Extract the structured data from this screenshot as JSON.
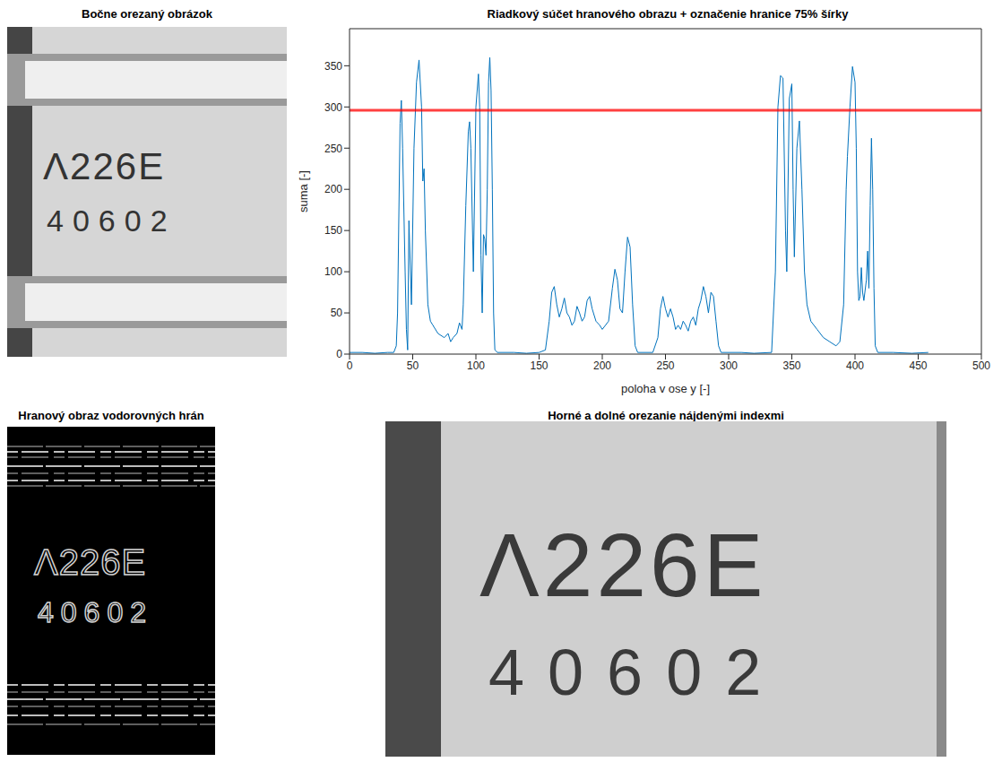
{
  "chart_data": {
    "type": "line",
    "title": "Riadkový súčet hranového obrazu + označenie hranice 75% šírky",
    "xlabel": "poloha v ose y [-]",
    "ylabel": "suma [-]",
    "x": [
      0,
      10,
      20,
      30,
      35,
      37,
      38,
      40,
      41,
      42,
      44,
      45,
      46,
      47,
      49,
      51,
      53,
      55,
      57,
      58,
      59,
      60,
      62,
      64,
      66,
      70,
      75,
      78,
      80,
      82,
      85,
      87,
      89,
      90,
      92,
      94,
      95,
      96,
      98,
      100,
      102,
      103,
      104,
      105,
      106,
      107,
      108,
      109,
      110,
      111,
      112,
      113,
      114,
      115,
      117,
      130,
      140,
      150,
      155,
      158,
      160,
      162,
      164,
      166,
      168,
      170,
      172,
      174,
      176,
      178,
      180,
      182,
      184,
      186,
      188,
      190,
      192,
      195,
      198,
      200,
      205,
      208,
      210,
      212,
      214,
      216,
      218,
      220,
      222,
      224,
      226,
      228,
      240,
      244,
      246,
      248,
      250,
      252,
      254,
      256,
      258,
      260,
      262,
      264,
      266,
      268,
      270,
      272,
      274,
      276,
      278,
      280,
      282,
      284,
      286,
      288,
      290,
      292,
      294,
      310,
      320,
      334,
      337,
      339,
      341,
      343,
      345,
      346,
      348,
      350,
      351,
      352,
      354,
      356,
      358,
      360,
      362,
      365,
      370,
      375,
      380,
      385,
      388,
      391,
      393,
      394,
      396,
      398,
      400,
      401,
      402,
      403,
      404,
      405,
      406,
      407,
      409,
      410,
      411,
      412,
      413,
      414,
      415,
      416,
      418,
      430,
      445,
      458
    ],
    "values": [
      2,
      2,
      1,
      2,
      2,
      10,
      50,
      280,
      308,
      250,
      100,
      30,
      5,
      162,
      60,
      250,
      330,
      357,
      300,
      210,
      225,
      150,
      60,
      40,
      35,
      25,
      20,
      25,
      15,
      20,
      25,
      38,
      30,
      60,
      180,
      270,
      282,
      250,
      100,
      300,
      340,
      300,
      120,
      50,
      145,
      140,
      120,
      200,
      330,
      360,
      320,
      200,
      50,
      5,
      2,
      2,
      1,
      2,
      5,
      40,
      75,
      82,
      60,
      45,
      55,
      68,
      50,
      45,
      35,
      40,
      58,
      50,
      40,
      45,
      65,
      70,
      55,
      40,
      35,
      30,
      40,
      80,
      103,
      90,
      55,
      50,
      100,
      142,
      130,
      60,
      10,
      2,
      2,
      20,
      55,
      70,
      55,
      45,
      55,
      45,
      30,
      35,
      30,
      40,
      35,
      28,
      40,
      45,
      35,
      55,
      65,
      82,
      70,
      50,
      75,
      70,
      40,
      10,
      2,
      2,
      1,
      2,
      100,
      300,
      338,
      335,
      150,
      100,
      310,
      328,
      200,
      118,
      250,
      283,
      200,
      100,
      60,
      40,
      30,
      20,
      15,
      10,
      15,
      60,
      200,
      240,
      300,
      349,
      330,
      250,
      100,
      65,
      70,
      105,
      75,
      65,
      90,
      125,
      80,
      180,
      262,
      200,
      80,
      10,
      2,
      2,
      1,
      2
    ],
    "color": "#0072bd",
    "xlim": [
      0,
      500
    ],
    "xticks": [
      0,
      50,
      100,
      150,
      200,
      250,
      300,
      350,
      400,
      450,
      500
    ],
    "ylim": [
      0,
      395
    ],
    "yticks": [
      0,
      50,
      100,
      150,
      200,
      250,
      300,
      350
    ],
    "grid": false,
    "reference_line": {
      "value": 296,
      "color": "#ff0000"
    }
  },
  "images": [
    {
      "title": "Bočne orezaný obrázok",
      "texts": [
        "Λ226E",
        "40602"
      ]
    },
    {
      "title": "Hranový obraz vodorovných hrán",
      "texts": [
        "Λ226E",
        "40602"
      ]
    },
    {
      "title": "Horné a dolné orezanie nájdenými indexmi",
      "texts": [
        "Λ226E",
        "40602"
      ]
    }
  ]
}
